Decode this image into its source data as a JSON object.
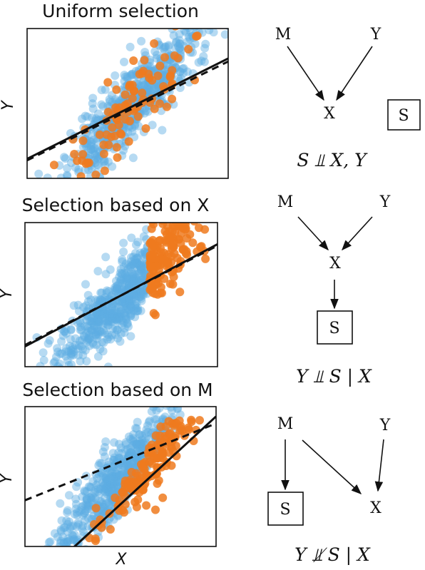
{
  "panels": [
    {
      "title": "Uniform selection",
      "ylabel": "Y",
      "xlabel": "",
      "graph": {
        "nodes": [
          "M",
          "Y",
          "X",
          "S"
        ],
        "edges": [
          [
            "M",
            "X"
          ],
          [
            "Y",
            "X"
          ]
        ],
        "boxed": "S"
      },
      "formula": "S ⫫ X, Y"
    },
    {
      "title": "Selection based on X",
      "ylabel": "Y",
      "xlabel": "",
      "graph": {
        "nodes": [
          "M",
          "Y",
          "X",
          "S"
        ],
        "edges": [
          [
            "M",
            "X"
          ],
          [
            "Y",
            "X"
          ],
          [
            "X",
            "S"
          ]
        ],
        "boxed": "S"
      },
      "formula": "Y ⫫ S | X"
    },
    {
      "title": "Selection based on M",
      "ylabel": "Y",
      "xlabel": "X",
      "graph": {
        "nodes": [
          "M",
          "Y",
          "S",
          "X"
        ],
        "edges": [
          [
            "M",
            "S"
          ],
          [
            "M",
            "X"
          ],
          [
            "Y",
            "X"
          ]
        ],
        "boxed": "S"
      },
      "formula": "Y ⫫̸ S | X"
    }
  ],
  "colors": {
    "population": "#5dade2",
    "selected": "#ee7a1f",
    "line": "#111111"
  },
  "chart_data": [
    {
      "type": "scatter",
      "title": "Uniform selection",
      "ylabel": "Y",
      "series": [
        {
          "role": "population",
          "marker": "circle"
        },
        {
          "role": "selected",
          "marker": "circle"
        }
      ],
      "fits": [
        {
          "style": "solid",
          "x": [
            0.0,
            1.0
          ],
          "y": [
            0.13,
            0.8
          ]
        },
        {
          "style": "dashed",
          "x": [
            0.0,
            1.0
          ],
          "y": [
            0.12,
            0.78
          ]
        }
      ]
    },
    {
      "type": "scatter",
      "title": "Selection based on X",
      "ylabel": "Y",
      "series": [
        {
          "role": "population",
          "marker": "circle"
        },
        {
          "role": "selected",
          "marker": "circle"
        }
      ],
      "fits": [
        {
          "style": "solid",
          "x": [
            0.0,
            1.0
          ],
          "y": [
            0.14,
            0.85
          ]
        },
        {
          "style": "dashed",
          "x": [
            0.0,
            1.0
          ],
          "y": [
            0.15,
            0.84
          ]
        }
      ]
    },
    {
      "type": "scatter",
      "title": "Selection based on M",
      "xlabel": "X",
      "ylabel": "Y",
      "series": [
        {
          "role": "population",
          "marker": "circle"
        },
        {
          "role": "selected",
          "marker": "circle"
        }
      ],
      "fits": [
        {
          "style": "dashed",
          "x": [
            0.0,
            1.0
          ],
          "y": [
            0.33,
            0.88
          ]
        },
        {
          "style": "solid",
          "x": [
            0.22,
            1.0
          ],
          "y": [
            -0.05,
            0.93
          ]
        }
      ]
    }
  ]
}
